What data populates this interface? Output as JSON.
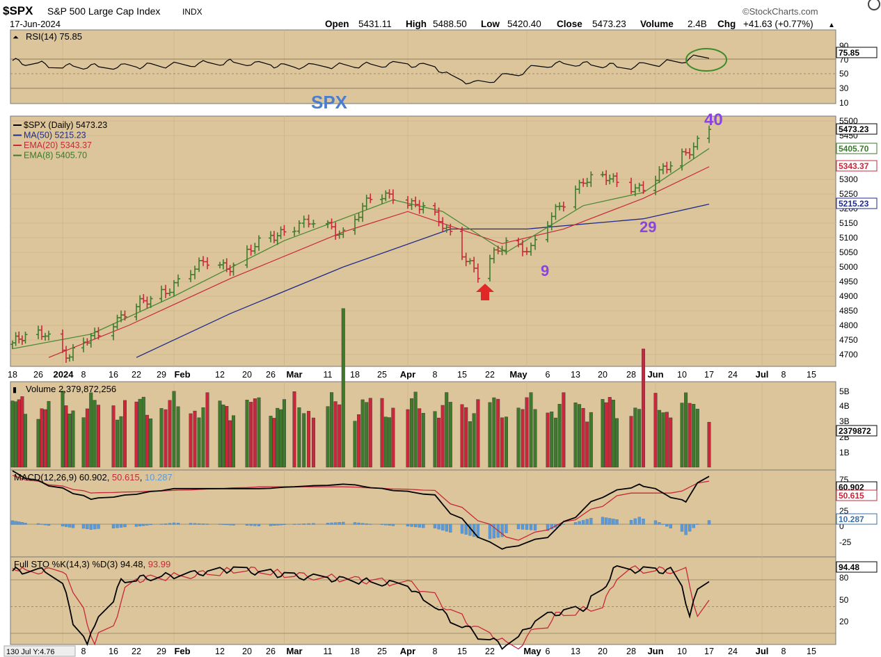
{
  "header": {
    "symbol": "$SPX",
    "name": "S&P 500 Large Cap Index",
    "exchange": "INDX",
    "date": "17-Jun-2024",
    "brand": "©StockCharts.com",
    "open_label": "Open",
    "open": "5431.11",
    "high_label": "High",
    "high": "5488.50",
    "low_label": "Low",
    "low": "5420.40",
    "close_label": "Close",
    "close": "5473.23",
    "volume_label": "Volume",
    "volume": "2.4B",
    "chg_label": "Chg",
    "chg": "+41.63 (+0.77%)"
  },
  "rsi": {
    "label": "RSI(14) 75.85",
    "value_tag": "75.85",
    "ticks": [
      "90",
      "70",
      "50",
      "30",
      "10"
    ]
  },
  "price": {
    "watermark": "SPX",
    "legend": [
      {
        "text": "$SPX (Daily) 5473.23",
        "color": "#000000"
      },
      {
        "text": "MA(50) 5215.23",
        "color": "#1f2a8c"
      },
      {
        "text": "EMA(20) 5343.37",
        "color": "#c8283a"
      },
      {
        "text": "EMA(8) 5405.70",
        "color": "#3a7a2a"
      }
    ],
    "ticks": [
      "5500",
      "5450",
      "5300",
      "5250",
      "5200",
      "5150",
      "5100",
      "5050",
      "5000",
      "4950",
      "4900",
      "4850",
      "4800",
      "4750",
      "4700"
    ],
    "tags": [
      {
        "text": "5473.23",
        "color": "#000000"
      },
      {
        "text": "5405.70",
        "color": "#3a7a2a"
      },
      {
        "text": "5343.37",
        "color": "#c8283a"
      },
      {
        "text": "5215.23",
        "color": "#1f2a8c"
      }
    ],
    "annotations": [
      "40",
      "29",
      "9"
    ]
  },
  "axis_labels": [
    {
      "t": "18",
      "b": false
    },
    {
      "t": "26",
      "b": false
    },
    {
      "t": "2024",
      "b": true
    },
    {
      "t": "8",
      "b": false
    },
    {
      "t": "16",
      "b": false
    },
    {
      "t": "22",
      "b": false
    },
    {
      "t": "29",
      "b": false
    },
    {
      "t": "Feb",
      "b": true
    },
    {
      "t": "12",
      "b": false
    },
    {
      "t": "20",
      "b": false
    },
    {
      "t": "26",
      "b": false
    },
    {
      "t": "Mar",
      "b": true
    },
    {
      "t": "11",
      "b": false
    },
    {
      "t": "18",
      "b": false
    },
    {
      "t": "25",
      "b": false
    },
    {
      "t": "Apr",
      "b": true
    },
    {
      "t": "8",
      "b": false
    },
    {
      "t": "15",
      "b": false
    },
    {
      "t": "22",
      "b": false
    },
    {
      "t": "May",
      "b": true
    },
    {
      "t": "6",
      "b": false
    },
    {
      "t": "13",
      "b": false
    },
    {
      "t": "20",
      "b": false
    },
    {
      "t": "28",
      "b": false
    },
    {
      "t": "Jun",
      "b": true
    },
    {
      "t": "10",
      "b": false
    },
    {
      "t": "17",
      "b": false
    },
    {
      "t": "24",
      "b": false
    },
    {
      "t": "Jul",
      "b": true
    },
    {
      "t": "8",
      "b": false
    },
    {
      "t": "15",
      "b": false
    }
  ],
  "bottom_axis_labels": [
    {
      "t": "8",
      "b": false
    },
    {
      "t": "16",
      "b": false
    },
    {
      "t": "22",
      "b": false
    },
    {
      "t": "29",
      "b": false
    },
    {
      "t": "Feb",
      "b": true
    },
    {
      "t": "12",
      "b": false
    },
    {
      "t": "20",
      "b": false
    },
    {
      "t": "26",
      "b": false
    },
    {
      "t": "Mar",
      "b": true
    },
    {
      "t": "11",
      "b": false
    },
    {
      "t": "18",
      "b": false
    },
    {
      "t": "25",
      "b": false
    },
    {
      "t": "Apr",
      "b": true
    },
    {
      "t": "8",
      "b": false
    },
    {
      "t": "15",
      "b": false
    },
    {
      "t": "22",
      "b": false
    },
    {
      "t": "May",
      "b": true
    },
    {
      "t": "6",
      "b": false
    },
    {
      "t": "13",
      "b": false
    },
    {
      "t": "20",
      "b": false
    },
    {
      "t": "28",
      "b": false
    },
    {
      "t": "Jun",
      "b": true
    },
    {
      "t": "10",
      "b": false
    },
    {
      "t": "17",
      "b": false
    },
    {
      "t": "24",
      "b": false
    },
    {
      "t": "Jul",
      "b": true
    },
    {
      "t": "8",
      "b": false
    },
    {
      "t": "15",
      "b": false
    }
  ],
  "cursor_readout": "130 Jul Y:4.76",
  "volume": {
    "label": "Volume 2,379,872,256",
    "ticks": [
      "5B",
      "4B",
      "3B",
      "2B",
      "1B"
    ],
    "tag": "2379872"
  },
  "macd": {
    "label_main": "MACD(12,26,9) 60.902",
    "label_signal": "50.615",
    "label_hist": "10.287",
    "sep": ", ",
    "ticks": [
      "75",
      "25",
      "0",
      "-25"
    ],
    "tags": [
      "60.902",
      "50.615",
      "10.287"
    ]
  },
  "sto": {
    "label_main": "Full STO %K(14,3) %D(3) 94.48",
    "label_d": "93.99",
    "ticks": [
      "80",
      "50",
      "20"
    ],
    "tag": "94.48"
  },
  "colors": {
    "panel_bg": "#dcc59a",
    "up": "#3f7a2c",
    "down": "#c8283a",
    "ma50": "#1f2a8c",
    "ema20": "#c8283a",
    "ema8": "#4a8a35",
    "hist": "#5b9ad6",
    "rsi_circle": "#3f8a2a",
    "annot_purple": "#8a44e0",
    "arrow_red": "#e02828",
    "watermark_blue": "#4a7fd0"
  },
  "chart_data": {
    "type": "line",
    "title": "$SPX S&P 500 Large Cap Index INDX",
    "x_range": [
      "2023-12-18",
      "2024-07-19"
    ],
    "y_range_price": [
      4680,
      5530
    ],
    "log_scale": false,
    "grid": true,
    "series": [
      {
        "name": "$SPX (Daily)",
        "last": 5473.23,
        "points": [
          [
            "2023-12-18",
            4740
          ],
          [
            "2023-12-28",
            4780
          ],
          [
            "2024-01-04",
            4690
          ],
          [
            "2024-01-12",
            4780
          ],
          [
            "2024-01-19",
            4840
          ],
          [
            "2024-01-26",
            4890
          ],
          [
            "2024-02-02",
            4950
          ],
          [
            "2024-02-09",
            5020
          ],
          [
            "2024-02-16",
            5000
          ],
          [
            "2024-02-23",
            5080
          ],
          [
            "2024-03-01",
            5130
          ],
          [
            "2024-03-08",
            5150
          ],
          [
            "2024-03-15",
            5120
          ],
          [
            "2024-03-22",
            5230
          ],
          [
            "2024-03-28",
            5250
          ],
          [
            "2024-04-05",
            5200
          ],
          [
            "2024-04-12",
            5120
          ],
          [
            "2024-04-19",
            4967
          ],
          [
            "2024-04-26",
            5090
          ],
          [
            "2024-05-02",
            5060
          ],
          [
            "2024-05-09",
            5210
          ],
          [
            "2024-05-15",
            5300
          ],
          [
            "2024-05-22",
            5300
          ],
          [
            "2024-05-31",
            5270
          ],
          [
            "2024-06-07",
            5350
          ],
          [
            "2024-06-14",
            5430
          ],
          [
            "2024-06-17",
            5473.23
          ]
        ]
      },
      {
        "name": "MA(50)",
        "last": 5215.23,
        "points": [
          [
            "2024-01-22",
            4690
          ],
          [
            "2024-02-15",
            4840
          ],
          [
            "2024-03-15",
            5000
          ],
          [
            "2024-04-12",
            5130
          ],
          [
            "2024-05-01",
            5130
          ],
          [
            "2024-05-31",
            5165
          ],
          [
            "2024-06-17",
            5215.23
          ]
        ]
      },
      {
        "name": "EMA(20)",
        "last": 5343.37,
        "points": [
          [
            "2023-12-29",
            4690
          ],
          [
            "2024-01-20",
            4800
          ],
          [
            "2024-02-15",
            4960
          ],
          [
            "2024-03-15",
            5120
          ],
          [
            "2024-04-01",
            5190
          ],
          [
            "2024-04-25",
            5080
          ],
          [
            "2024-05-10",
            5130
          ],
          [
            "2024-05-31",
            5235
          ],
          [
            "2024-06-17",
            5343.37
          ]
        ]
      },
      {
        "name": "EMA(8)",
        "last": 5405.7,
        "points": [
          [
            "2023-12-18",
            4720
          ],
          [
            "2024-01-10",
            4770
          ],
          [
            "2024-02-01",
            4900
          ],
          [
            "2024-03-01",
            5090
          ],
          [
            "2024-03-28",
            5230
          ],
          [
            "2024-04-10",
            5190
          ],
          [
            "2024-04-26",
            5050
          ],
          [
            "2024-05-15",
            5210
          ],
          [
            "2024-05-31",
            5255
          ],
          [
            "2024-06-17",
            5405.7
          ]
        ]
      }
    ],
    "indicators": {
      "RSI(14)": 75.85,
      "Volume": 2379872256,
      "MACD(12,26,9)": {
        "macd": 60.902,
        "signal": 50.615,
        "histogram": 10.287
      },
      "Full STO %K(14,3) %D(3)": {
        "k": 94.48,
        "d": 93.99
      }
    }
  }
}
